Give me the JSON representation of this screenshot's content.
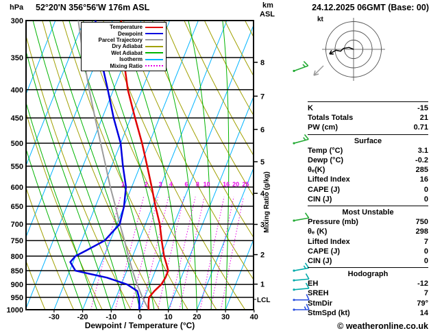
{
  "header": {
    "pressure_unit": "hPa",
    "station": "52°20'N 356°56'W 176m ASL",
    "altitude_unit_line1": "km",
    "altitude_unit_line2": "ASL",
    "datetime": "24.12.2025 06GMT (Base: 00)"
  },
  "legend": [
    {
      "label": "Temperature",
      "color": "#e00000",
      "style": "solid"
    },
    {
      "label": "Dewpoint",
      "color": "#0000e0",
      "style": "solid"
    },
    {
      "label": "Parcel Trajectory",
      "color": "#9a9a9a",
      "style": "solid"
    },
    {
      "label": "Dry Adiabat",
      "color": "#a0a000",
      "style": "solid"
    },
    {
      "label": "Wet Adiabat",
      "color": "#00b400",
      "style": "solid"
    },
    {
      "label": "Isotherm",
      "color": "#00b4ff",
      "style": "solid"
    },
    {
      "label": "Mixing Ratio",
      "color": "#e800e8",
      "style": "dotted"
    }
  ],
  "chart_data": {
    "type": "line",
    "subtype": "skew-t-log-p",
    "title": "52°20'N 356°56'W 176m ASL",
    "xlabel": "Dewpoint / Temperature (°C)",
    "pressure_axis_unit": "hPa",
    "pressure_log_scale": true,
    "pressure_range": [
      300,
      1000
    ],
    "pressure_levels": [
      300,
      350,
      400,
      450,
      500,
      550,
      600,
      650,
      700,
      750,
      800,
      850,
      900,
      950,
      1000
    ],
    "temp_ticks": [
      -30,
      -20,
      -10,
      0,
      10,
      20,
      30,
      40
    ],
    "right_axis_km": [
      1,
      2,
      3,
      4,
      5,
      6,
      7,
      8
    ],
    "mixing_ratio_values": [
      1,
      2,
      3,
      4,
      6,
      8,
      10,
      16,
      20,
      25
    ],
    "mixing_ratio_axis_label": "Mixing Ratio (g/kg)",
    "lcl": {
      "label": "LCL",
      "pressure": 958
    },
    "colors": {
      "temperature": "#e00000",
      "dewpoint": "#0000e0",
      "parcel": "#9a9a9a",
      "dry_adiabat": "#a0a000",
      "wet_adiabat": "#00b400",
      "isotherm": "#00b4ff",
      "mixing_ratio": "#e800e8",
      "pressure_line": "#000000"
    },
    "series": [
      {
        "name": "Parcel Trajectory",
        "color": "#9a9a9a",
        "width": 2,
        "points": [
          [
            1000,
            3.1
          ],
          [
            960,
            0.0
          ],
          [
            950,
            -0.8
          ],
          [
            900,
            -4.5
          ],
          [
            850,
            -8.0
          ],
          [
            800,
            -11.5
          ],
          [
            750,
            -15.0
          ],
          [
            700,
            -19.0
          ],
          [
            650,
            -23.0
          ],
          [
            600,
            -27.5
          ],
          [
            550,
            -32.0
          ],
          [
            500,
            -37.0
          ],
          [
            450,
            -42.5
          ],
          [
            400,
            -48.5
          ],
          [
            350,
            -55.0
          ],
          [
            300,
            -62.0
          ]
        ]
      },
      {
        "name": "Dewpoint",
        "color": "#0000e0",
        "width": 2.5,
        "points": [
          [
            1000,
            -0.2
          ],
          [
            975,
            -1.0
          ],
          [
            950,
            -2.0
          ],
          [
            925,
            -3.5
          ],
          [
            900,
            -8.0
          ],
          [
            875,
            -16.0
          ],
          [
            850,
            -28.0
          ],
          [
            820,
            -31.0
          ],
          [
            800,
            -30.0
          ],
          [
            775,
            -26.0
          ],
          [
            750,
            -22.0
          ],
          [
            700,
            -19.0
          ],
          [
            650,
            -20.0
          ],
          [
            600,
            -22.0
          ],
          [
            550,
            -26.0
          ],
          [
            500,
            -30.0
          ],
          [
            450,
            -36.0
          ],
          [
            400,
            -42.0
          ],
          [
            350,
            -49.0
          ],
          [
            300,
            -56.0
          ]
        ]
      },
      {
        "name": "Temperature",
        "color": "#e00000",
        "width": 2.5,
        "points": [
          [
            1000,
            3.1
          ],
          [
            975,
            2.2
          ],
          [
            950,
            1.5
          ],
          [
            925,
            2.5
          ],
          [
            900,
            4.0
          ],
          [
            875,
            4.5
          ],
          [
            850,
            4.5
          ],
          [
            825,
            2.8
          ],
          [
            800,
            1.0
          ],
          [
            750,
            -2.0
          ],
          [
            700,
            -5.0
          ],
          [
            650,
            -9.0
          ],
          [
            600,
            -13.0
          ],
          [
            550,
            -17.5
          ],
          [
            500,
            -22.5
          ],
          [
            450,
            -28.5
          ],
          [
            400,
            -35.0
          ],
          [
            350,
            -41.0
          ],
          [
            300,
            -47.0
          ]
        ]
      }
    ],
    "wind_barbs": [
      {
        "pressure": 370,
        "speed": 15,
        "direction": 70,
        "color": "#22aa33"
      },
      {
        "pressure": 500,
        "speed": 15,
        "direction": 75,
        "color": "#22aa33"
      },
      {
        "pressure": 690,
        "speed": 10,
        "direction": 80,
        "color": "#22aa33"
      },
      {
        "pressure": 850,
        "speed": 15,
        "direction": 80,
        "color": "#00aaaa"
      },
      {
        "pressure": 885,
        "speed": 10,
        "direction": 85,
        "color": "#00aaaa"
      },
      {
        "pressure": 920,
        "speed": 10,
        "direction": 85,
        "color": "#00aaaa"
      },
      {
        "pressure": 960,
        "speed": 10,
        "direction": 90,
        "color": "#2b50e0"
      },
      {
        "pressure": 1000,
        "speed": 15,
        "direction": 90,
        "color": "#2b50e0"
      }
    ]
  },
  "hodograph": {
    "unit_label": "kt",
    "ring_radii_kt": [
      10,
      20,
      30
    ],
    "trace_uv_kt": [
      [
        0,
        0
      ],
      [
        -5,
        2
      ],
      [
        -11,
        1
      ],
      [
        -14,
        -2
      ],
      [
        -19,
        -1
      ],
      [
        -26,
        -5
      ]
    ],
    "storm_motion_marker": true
  },
  "indices": {
    "rows": [
      {
        "type": "divider"
      },
      {
        "type": "kv",
        "label": "K",
        "value": "-15"
      },
      {
        "type": "kv",
        "label": "Totals Totals",
        "value": "21"
      },
      {
        "type": "kv",
        "label": "PW (cm)",
        "value": "0.71"
      },
      {
        "type": "divider"
      },
      {
        "type": "header",
        "label": "Surface"
      },
      {
        "type": "kv",
        "label": "Temp (°C)",
        "value": "3.1"
      },
      {
        "type": "kv",
        "label": "Dewp (°C)",
        "value": "-0.2"
      },
      {
        "type": "kv",
        "label": "θₑ(K)",
        "value": "285"
      },
      {
        "type": "kv",
        "label": "Lifted Index",
        "value": "16"
      },
      {
        "type": "kv",
        "label": "CAPE (J)",
        "value": "0"
      },
      {
        "type": "kv",
        "label": "CIN (J)",
        "value": "0"
      },
      {
        "type": "divider"
      },
      {
        "type": "header",
        "label": "Most Unstable"
      },
      {
        "type": "kv",
        "label": "Pressure (mb)",
        "value": "750"
      },
      {
        "type": "kv",
        "label": "θₑ (K)",
        "value": "298"
      },
      {
        "type": "kv",
        "label": "Lifted Index",
        "value": "7"
      },
      {
        "type": "kv",
        "label": "CAPE (J)",
        "value": "0"
      },
      {
        "type": "kv",
        "label": "CIN (J)",
        "value": "0"
      },
      {
        "type": "divider"
      },
      {
        "type": "header",
        "label": "Hodograph"
      },
      {
        "type": "kv",
        "label": "EH",
        "value": "-12"
      },
      {
        "type": "kv",
        "label": "SREH",
        "value": "7"
      },
      {
        "type": "kv",
        "label": "StmDir",
        "value": "79°"
      },
      {
        "type": "kv",
        "label": "StmSpd (kt)",
        "value": "14"
      }
    ]
  },
  "footer": {
    "copyright": "© weatheronline.co.uk"
  }
}
